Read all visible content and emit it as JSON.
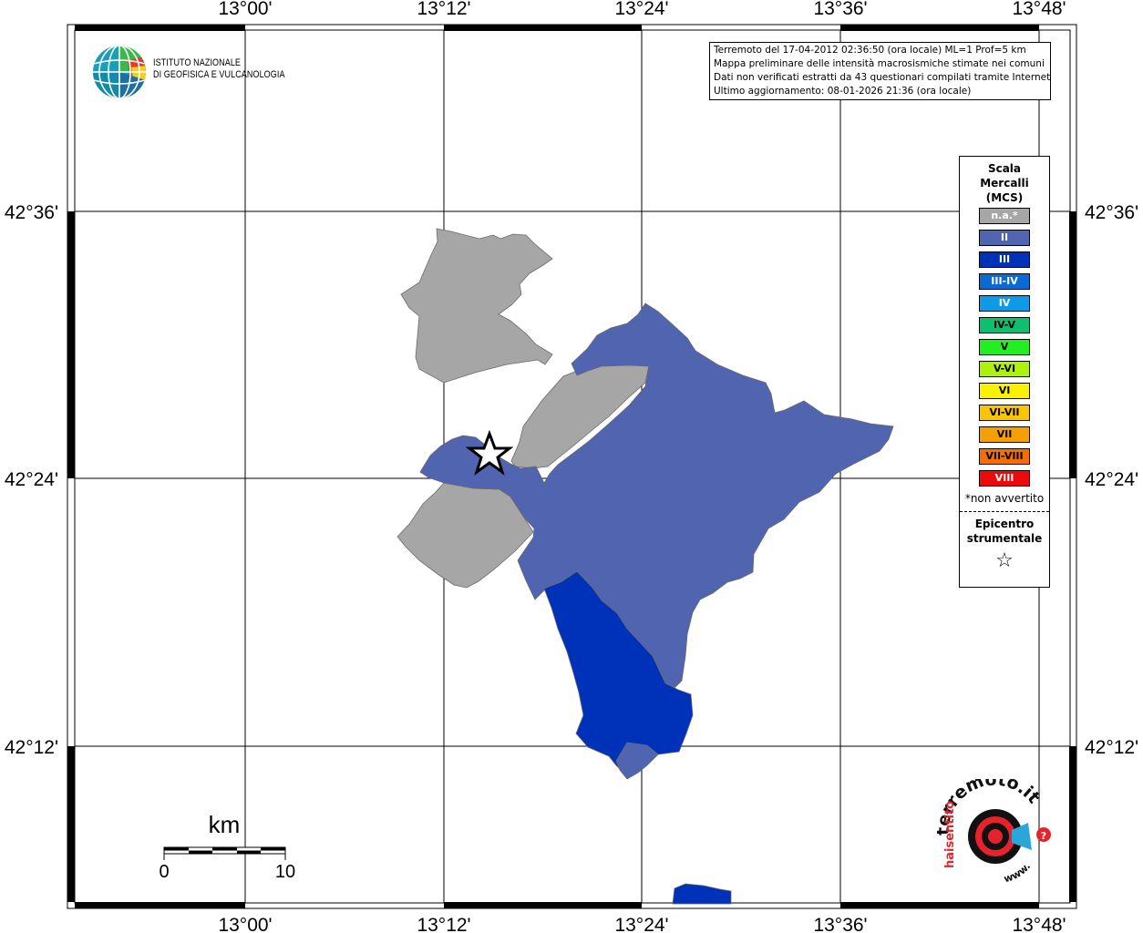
{
  "map": {
    "lon_ticks": [
      "13°00'",
      "13°12'",
      "13°24'",
      "13°36'",
      "13°48'"
    ],
    "lat_ticks": [
      "42°36'",
      "42°24'",
      "42°12'"
    ],
    "scale_bar": {
      "unit": "km",
      "min": "0",
      "max": "10"
    }
  },
  "logo": {
    "line1": "ISTITUTO NAZIONALE",
    "line2": "DI GEOFISICA E VULCANOLOGIA"
  },
  "info_box": {
    "line1": "Terremoto del 17-04-2012 02:36:50 (ora locale) ML=1 Prof=5 km",
    "line2": "Mappa preliminare delle intensità macrosismiche stimate nei comuni",
    "line3": "Dati non verificati estratti da 43 questionari compilati tramite Internet.",
    "line4": "Ultimo aggiornamento: 08-01-2026 21:36 (ora locale)"
  },
  "legend": {
    "title_line1": "Scala",
    "title_line2": "Mercalli",
    "title_line3": "(MCS)",
    "items": [
      {
        "label": "n.a.*",
        "color": "#a6a6a6",
        "text_color": "#ffffff"
      },
      {
        "label": "II",
        "color": "#5064b0",
        "text_color": "#ffffff"
      },
      {
        "label": "III",
        "color": "#0032b9",
        "text_color": "#ffffff"
      },
      {
        "label": "III-IV",
        "color": "#0a6ad4",
        "text_color": "#ffffff"
      },
      {
        "label": "IV",
        "color": "#0d9ae6",
        "text_color": "#ffffff"
      },
      {
        "label": "IV-V",
        "color": "#0dbf6e",
        "text_color": "#000000"
      },
      {
        "label": "V",
        "color": "#22ee22",
        "text_color": "#000000"
      },
      {
        "label": "V-VI",
        "color": "#aef20c",
        "text_color": "#000000"
      },
      {
        "label": "VI",
        "color": "#f8f200",
        "text_color": "#000000"
      },
      {
        "label": "VI-VII",
        "color": "#f9c400",
        "text_color": "#000000"
      },
      {
        "label": "VII",
        "color": "#f6a000",
        "text_color": "#000000"
      },
      {
        "label": "VII-VIII",
        "color": "#f46f00",
        "text_color": "#000000"
      },
      {
        "label": "VIII",
        "color": "#ee0a0a",
        "text_color": "#ffffff"
      }
    ],
    "footnote": "*non avvertito",
    "epicenter_line1": "Epicentro",
    "epicenter_line2": "strumentale"
  },
  "watermark": {
    "text_top": "terremoto.it",
    "text_side": "haisentito",
    "text_bottom": "www."
  }
}
